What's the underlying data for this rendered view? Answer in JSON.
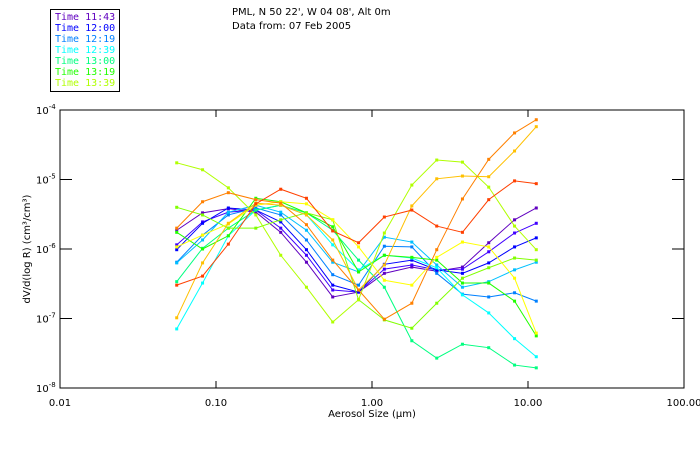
{
  "header": {
    "line1": "PML, N 50 22', W 04 08', Alt 0m",
    "line2": "Data from: 07 Feb 2005"
  },
  "chart_data": {
    "type": "line",
    "title": "PML, N 50 22', W 04 08', Alt 0m",
    "subtitle": "Data from: 07 Feb 2005",
    "xlabel": "Aerosol Size (μm)",
    "ylabel": "dV/d(log R) (cm³/cm³)",
    "xscale": "log",
    "yscale": "log",
    "xlim": [
      0.01,
      100
    ],
    "ylim": [
      1e-08,
      0.0001
    ],
    "xticks": [
      "0.01",
      "0.10",
      "1.00",
      "10.00",
      "100.00"
    ],
    "yticks": [
      {
        "base": "10",
        "exp": "-4"
      },
      {
        "base": "10",
        "exp": "-5"
      },
      {
        "base": "10",
        "exp": "-6"
      },
      {
        "base": "10",
        "exp": "-7"
      },
      {
        "base": "10",
        "exp": "-8"
      }
    ],
    "legend_position": "top-left (outside plot)",
    "grid": false,
    "x": [
      0.056,
      0.082,
      0.12,
      0.18,
      0.26,
      0.38,
      0.56,
      0.82,
      1.2,
      1.8,
      2.6,
      3.8,
      5.6,
      8.2,
      11.3
    ],
    "y_encoding": "log10 of dV/d(log R)",
    "series": [
      {
        "name": "Time 11:43",
        "color": "#6000c0",
        "log10_values": [
          -5.73,
          -5.48,
          -5.42,
          -5.47,
          -5.76,
          -6.19,
          -6.69,
          -6.62,
          -6.35,
          -6.26,
          -6.32,
          -6.26,
          -5.91,
          -5.58,
          -5.41
        ]
      },
      {
        "name": "",
        "color": "#4000ff",
        "log10_values": [
          -5.94,
          -5.61,
          -5.47,
          -5.44,
          -5.7,
          -6.09,
          -6.59,
          -6.62,
          -6.29,
          -6.23,
          -6.3,
          -6.29,
          -6.04,
          -5.77,
          -5.63
        ]
      },
      {
        "name": "Time 12:00",
        "color": "#0000ff",
        "log10_values": [
          -6.01,
          -5.63,
          -5.41,
          -5.44,
          -5.61,
          -6.01,
          -6.52,
          -6.62,
          -6.22,
          -6.16,
          -6.3,
          -6.35,
          -6.2,
          -5.97,
          -5.84
        ]
      },
      {
        "name": "Time 12:19",
        "color": "#0080ff",
        "log10_values": [
          -6.19,
          -5.8,
          -5.51,
          -5.41,
          -5.51,
          -5.87,
          -6.37,
          -6.52,
          -5.96,
          -5.97,
          -6.35,
          -6.65,
          -6.69,
          -6.63,
          -6.75
        ]
      },
      {
        "name": "",
        "color": "#00c0ff",
        "log10_values": [
          -6.2,
          -5.87,
          -5.47,
          -5.37,
          -5.47,
          -5.73,
          -6.19,
          -6.33,
          -5.83,
          -5.9,
          -6.23,
          -6.55,
          -6.47,
          -6.3,
          -6.19
        ]
      },
      {
        "name": "Time 12:39",
        "color": "#00ffff",
        "log10_values": [
          -7.15,
          -6.49,
          -5.81,
          -5.44,
          -5.37,
          -5.51,
          -5.94,
          -6.3,
          -6.09,
          -6.13,
          -6.27,
          -6.66,
          -6.92,
          -7.29,
          -7.55
        ]
      },
      {
        "name": "Time 13:00",
        "color": "#00ff80",
        "log10_values": [
          -6.47,
          -5.99,
          -5.7,
          -5.44,
          -5.37,
          -5.48,
          -5.73,
          -6.16,
          -6.55,
          -7.32,
          -7.57,
          -7.37,
          -7.42,
          -7.67,
          -7.71
        ]
      },
      {
        "name": "Time 13:19",
        "color": "#20ff00",
        "log10_values": [
          -5.76,
          -6.0,
          -5.81,
          -5.27,
          -5.32,
          -5.48,
          -5.68,
          -6.33,
          -6.09,
          -6.12,
          -6.16,
          -6.49,
          -6.49,
          -6.75,
          -7.25
        ]
      },
      {
        "name": "",
        "color": "#80ff00",
        "log10_values": [
          -5.4,
          -5.51,
          -5.7,
          -5.7,
          -5.58,
          -5.48,
          -5.58,
          -6.73,
          -7.02,
          -7.14,
          -6.78,
          -6.42,
          -6.27,
          -6.13,
          -6.16
        ]
      },
      {
        "name": "Time 13:39",
        "color": "#b0ff00",
        "log10_values": [
          -4.76,
          -4.86,
          -5.12,
          -5.51,
          -6.09,
          -6.55,
          -7.05,
          -6.73,
          -5.77,
          -5.08,
          -4.72,
          -4.75,
          -5.11,
          -5.67,
          -6.01
        ]
      },
      {
        "name": "",
        "color": "#ffff00",
        "log10_values": [
          -5.97,
          -5.8,
          -5.64,
          -5.37,
          -5.32,
          -5.35,
          -5.58,
          -5.97,
          -6.45,
          -6.52,
          -6.12,
          -5.9,
          -5.97,
          -6.42,
          -7.21
        ]
      },
      {
        "name": "",
        "color": "#ffc000",
        "log10_values": [
          -6.99,
          -6.2,
          -5.63,
          -5.34,
          -5.37,
          -5.51,
          -5.87,
          -6.59,
          -6.23,
          -5.38,
          -4.99,
          -4.95,
          -4.96,
          -4.59,
          -4.24
        ]
      },
      {
        "name": "",
        "color": "#ff8000",
        "log10_values": [
          -5.7,
          -5.32,
          -5.19,
          -5.29,
          -5.34,
          -5.65,
          -6.16,
          -6.59,
          -7.01,
          -6.78,
          -6.01,
          -5.28,
          -4.71,
          -4.33,
          -4.14
        ]
      },
      {
        "name": "",
        "color": "#ff4000",
        "log10_values": [
          -6.52,
          -6.39,
          -5.93,
          -5.35,
          -5.14,
          -5.27,
          -5.74,
          -5.91,
          -5.54,
          -5.44,
          -5.67,
          -5.76,
          -5.29,
          -5.02,
          -5.06
        ]
      }
    ]
  }
}
